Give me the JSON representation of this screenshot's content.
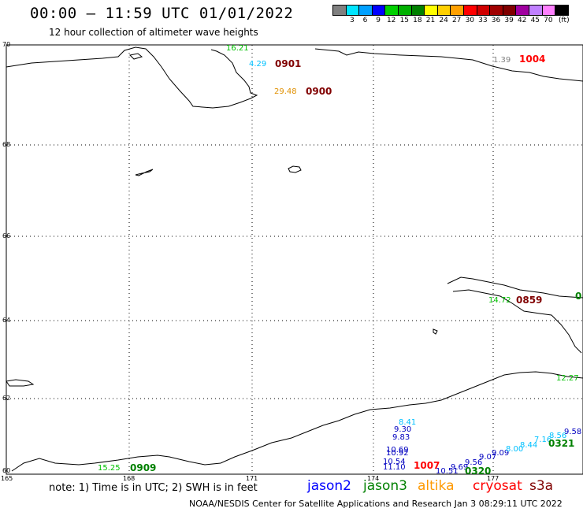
{
  "header": {
    "title": "00:00 – 11:59 UTC 01/01/2022",
    "subtitle": "12 hour collection of altimeter wave heights"
  },
  "colorbar": {
    "colors": [
      "#808080",
      "#00e5ff",
      "#00a0ff",
      "#0000ff",
      "#00d000",
      "#00b000",
      "#008000",
      "#ffff00",
      "#ffd000",
      "#ffa000",
      "#ff0000",
      "#d00000",
      "#a00000",
      "#800000",
      "#a000a0",
      "#c080ff",
      "#ff80ff",
      "#000000"
    ],
    "labels": [
      "3",
      "6",
      "9",
      "12",
      "15",
      "18",
      "21",
      "24",
      "27",
      "30",
      "33",
      "36",
      "39",
      "42",
      "45",
      "70"
    ],
    "unit": "(ft)"
  },
  "axes": {
    "lat_labels": [
      "70",
      "68",
      "66",
      "64",
      "62",
      "60"
    ],
    "lon_labels": [
      "165",
      "168",
      "171",
      "174",
      "177"
    ]
  },
  "observations": [
    {
      "text": "16.21",
      "color": "#00c000"
    },
    {
      "text": "4.29",
      "color": "#00c0ff"
    },
    {
      "text": "29.48",
      "color": "#e09000"
    },
    {
      "text": "1.39",
      "color": "#808080"
    },
    {
      "text": "14.72",
      "color": "#00c000"
    },
    {
      "text": "12.27",
      "color": "#00c000"
    },
    {
      "text": "8.41",
      "color": "#00c0ff"
    },
    {
      "text": "9.30",
      "color": "#0000c0"
    },
    {
      "text": "9.83",
      "color": "#0000c0"
    },
    {
      "text": "10.69",
      "color": "#0000c0"
    },
    {
      "text": "10.92",
      "color": "#0000c0"
    },
    {
      "text": "10.54",
      "color": "#0000c0"
    },
    {
      "text": "11.10",
      "color": "#0000c0"
    },
    {
      "text": "10.51",
      "color": "#0000c0"
    },
    {
      "text": "9.69",
      "color": "#0000c0"
    },
    {
      "text": "9.56",
      "color": "#0000c0"
    },
    {
      "text": "9.07",
      "color": "#0000c0"
    },
    {
      "text": "9.09",
      "color": "#0000c0"
    },
    {
      "text": "8.00",
      "color": "#00c0ff"
    },
    {
      "text": "8.44",
      "color": "#00c0ff"
    },
    {
      "text": "7.16",
      "color": "#00c0ff"
    },
    {
      "text": "8.56",
      "color": "#00c0ff"
    },
    {
      "text": "9.58",
      "color": "#0000c0"
    },
    {
      "text": "15.25",
      "color": "#00c000"
    }
  ],
  "pass_times": [
    {
      "text": "0901",
      "color": "#800000"
    },
    {
      "text": "0900",
      "color": "#800000"
    },
    {
      "text": "1004",
      "color": "#ff0000"
    },
    {
      "text": "0859",
      "color": "#800000"
    },
    {
      "text": "0",
      "color": "#008000"
    },
    {
      "text": "1007",
      "color": "#ff0000"
    },
    {
      "text": "0320",
      "color": "#008000"
    },
    {
      "text": "0321",
      "color": "#008000"
    },
    {
      "text": "0909",
      "color": "#008000"
    }
  ],
  "note": "note: 1) Time is in UTC; 2) SWH is in feet",
  "legend": [
    {
      "text": "jason2",
      "color": "#0000ff"
    },
    {
      "text": "jason3",
      "color": "#008000"
    },
    {
      "text": "altika",
      "color": "#ff9900"
    },
    {
      "text": "cryosat",
      "color": "#ff0000"
    },
    {
      "text": "s3a",
      "color": "#800000"
    }
  ],
  "footer": "NOAA/NESDIS Center for Satellite Applications and Research   Jan  3 08:29:11 UTC 2022"
}
